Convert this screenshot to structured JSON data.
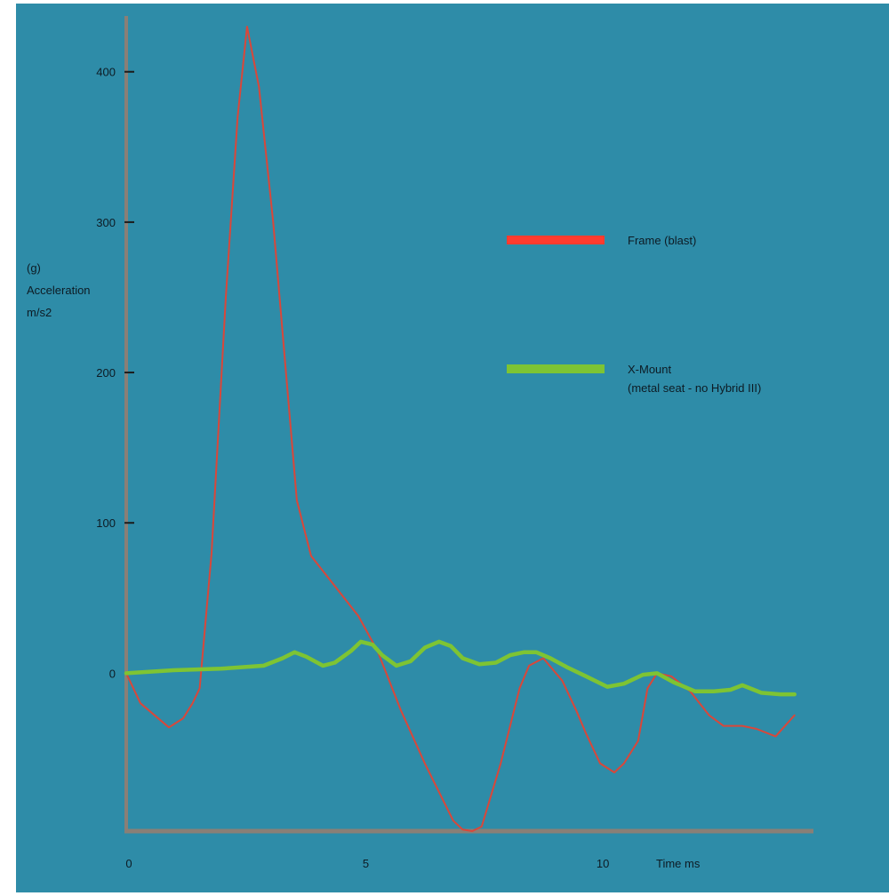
{
  "chart_data": {
    "type": "line",
    "title": "",
    "xlabel": "Time ms",
    "ylabel_lines": [
      "(g)",
      "Acceleration",
      "m/s2"
    ],
    "xlim": [
      0,
      14.5
    ],
    "ylim": [
      -105,
      430
    ],
    "x_ticks": [
      0,
      5,
      10
    ],
    "x_tick_labels": [
      "0",
      "5",
      "10"
    ],
    "y_ticks": [
      0,
      100,
      200,
      300,
      400
    ],
    "y_tick_labels": [
      "0",
      "100",
      "200",
      "300",
      "400"
    ],
    "grid": false,
    "legend_position": "upper-right",
    "colors": {
      "background": "#2e8ca8",
      "axis": "#8a7f76",
      "frame_line": "#d9473a",
      "frame_legend": "#ff3b2f",
      "mount_line": "#7ec433"
    },
    "series": [
      {
        "name": "Frame (blast)",
        "color_key": "frame_line",
        "x": [
          0,
          0.3,
          0.9,
          1.2,
          1.4,
          1.55,
          1.8,
          2.1,
          2.35,
          2.55,
          2.8,
          3.1,
          3.6,
          3.9,
          4.4,
          4.9,
          5.3,
          5.8,
          6.3,
          6.9,
          7.1,
          7.3,
          7.5,
          7.9,
          8.3,
          8.5,
          8.8,
          9.2,
          9.5,
          9.7,
          10.0,
          10.3,
          10.5,
          10.8,
          11.0,
          11.2,
          11.5,
          11.9,
          12.3,
          12.6,
          13.0,
          13.3,
          13.7,
          14.1
        ],
        "values": [
          0,
          -20,
          -36,
          -30,
          -20,
          -10,
          80,
          250,
          370,
          430,
          390,
          300,
          115,
          78,
          58,
          38,
          15,
          -25,
          -60,
          -98,
          -104,
          -105,
          -102,
          -60,
          -10,
          5,
          10,
          -5,
          -25,
          -40,
          -60,
          -66,
          -60,
          -45,
          -10,
          0,
          -2,
          -12,
          -28,
          -35,
          -35,
          -37,
          -42,
          -28
        ]
      },
      {
        "name": "X-Mount\n(metal seat - no Hybrid III)",
        "color_key": "mount_line",
        "x": [
          0,
          1.0,
          2.0,
          2.9,
          3.3,
          3.55,
          3.8,
          4.15,
          4.4,
          4.75,
          4.95,
          5.2,
          5.4,
          5.7,
          6.0,
          6.3,
          6.6,
          6.85,
          7.1,
          7.45,
          7.8,
          8.1,
          8.4,
          8.65,
          8.95,
          9.3,
          9.7,
          10.15,
          10.5,
          10.9,
          11.2,
          11.55,
          12.0,
          12.4,
          12.75,
          13.0,
          13.4,
          13.8,
          14.1
        ],
        "values": [
          0,
          2,
          3,
          5,
          10,
          14,
          11,
          5,
          7,
          15,
          21,
          19,
          12,
          5,
          8,
          17,
          21,
          18,
          10,
          6,
          7,
          12,
          14,
          14,
          10,
          4,
          -2,
          -9,
          -7,
          -1,
          0,
          -6,
          -12,
          -12,
          -11,
          -8,
          -13,
          -14,
          -14
        ]
      }
    ]
  }
}
